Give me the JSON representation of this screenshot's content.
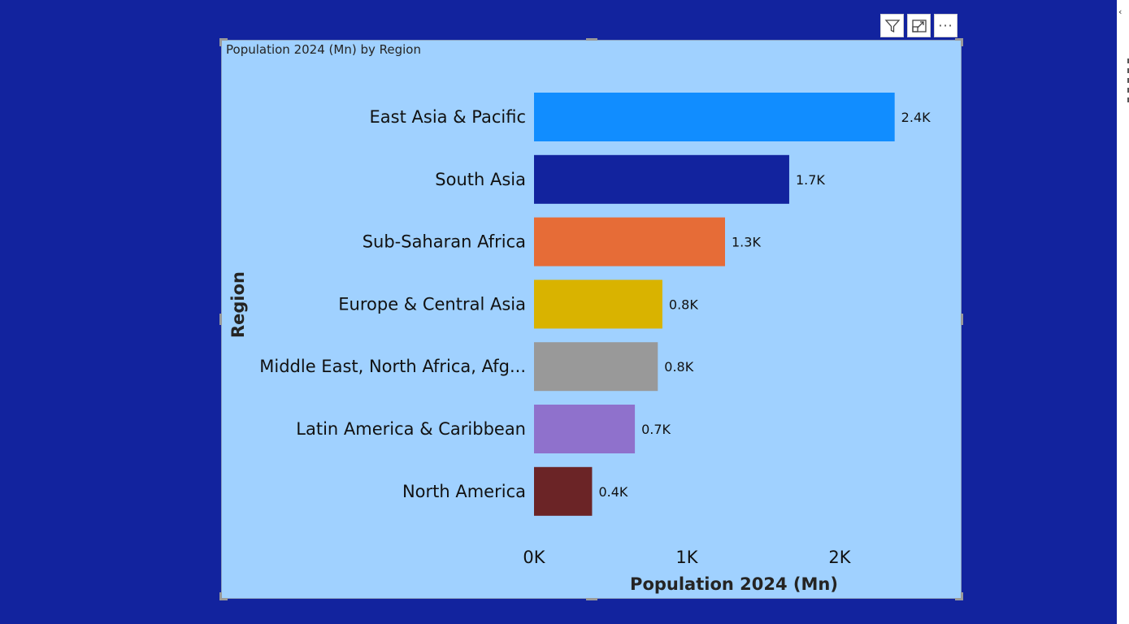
{
  "toolbar": {
    "filter_icon": "filter-icon",
    "focus_icon": "focus-mode-icon",
    "more_icon": "more-options-icon",
    "more_glyph": "···"
  },
  "visual": {
    "title": "Population 2024 (Mn) by Region"
  },
  "colors": {
    "page_bg": "#12239E",
    "visual_bg": "#A0D1FF"
  },
  "chart_data": {
    "type": "bar",
    "orientation": "horizontal",
    "title": "Population 2024 (Mn) by Region",
    "xlabel": "Population 2024 (Mn)",
    "ylabel": "Region",
    "xlim": [
      0,
      2500
    ],
    "xticks": [
      0,
      1000,
      2000
    ],
    "xtick_labels": [
      "0K",
      "1K",
      "2K"
    ],
    "categories": [
      "East Asia & Pacific",
      "South Asia",
      "Sub-Saharan Africa",
      "Europe & Central Asia",
      "Middle East, North Africa, Afg...",
      "Latin America & Caribbean",
      "North America"
    ],
    "values": [
      2360,
      1670,
      1250,
      840,
      810,
      660,
      380
    ],
    "value_labels": [
      "2.4K",
      "1.7K",
      "1.3K",
      "0.8K",
      "0.8K",
      "0.7K",
      "0.4K"
    ],
    "bar_colors": [
      "#118DFF",
      "#12239E",
      "#E66C37",
      "#D9B300",
      "#999999",
      "#8F71CC",
      "#6B2426"
    ]
  }
}
